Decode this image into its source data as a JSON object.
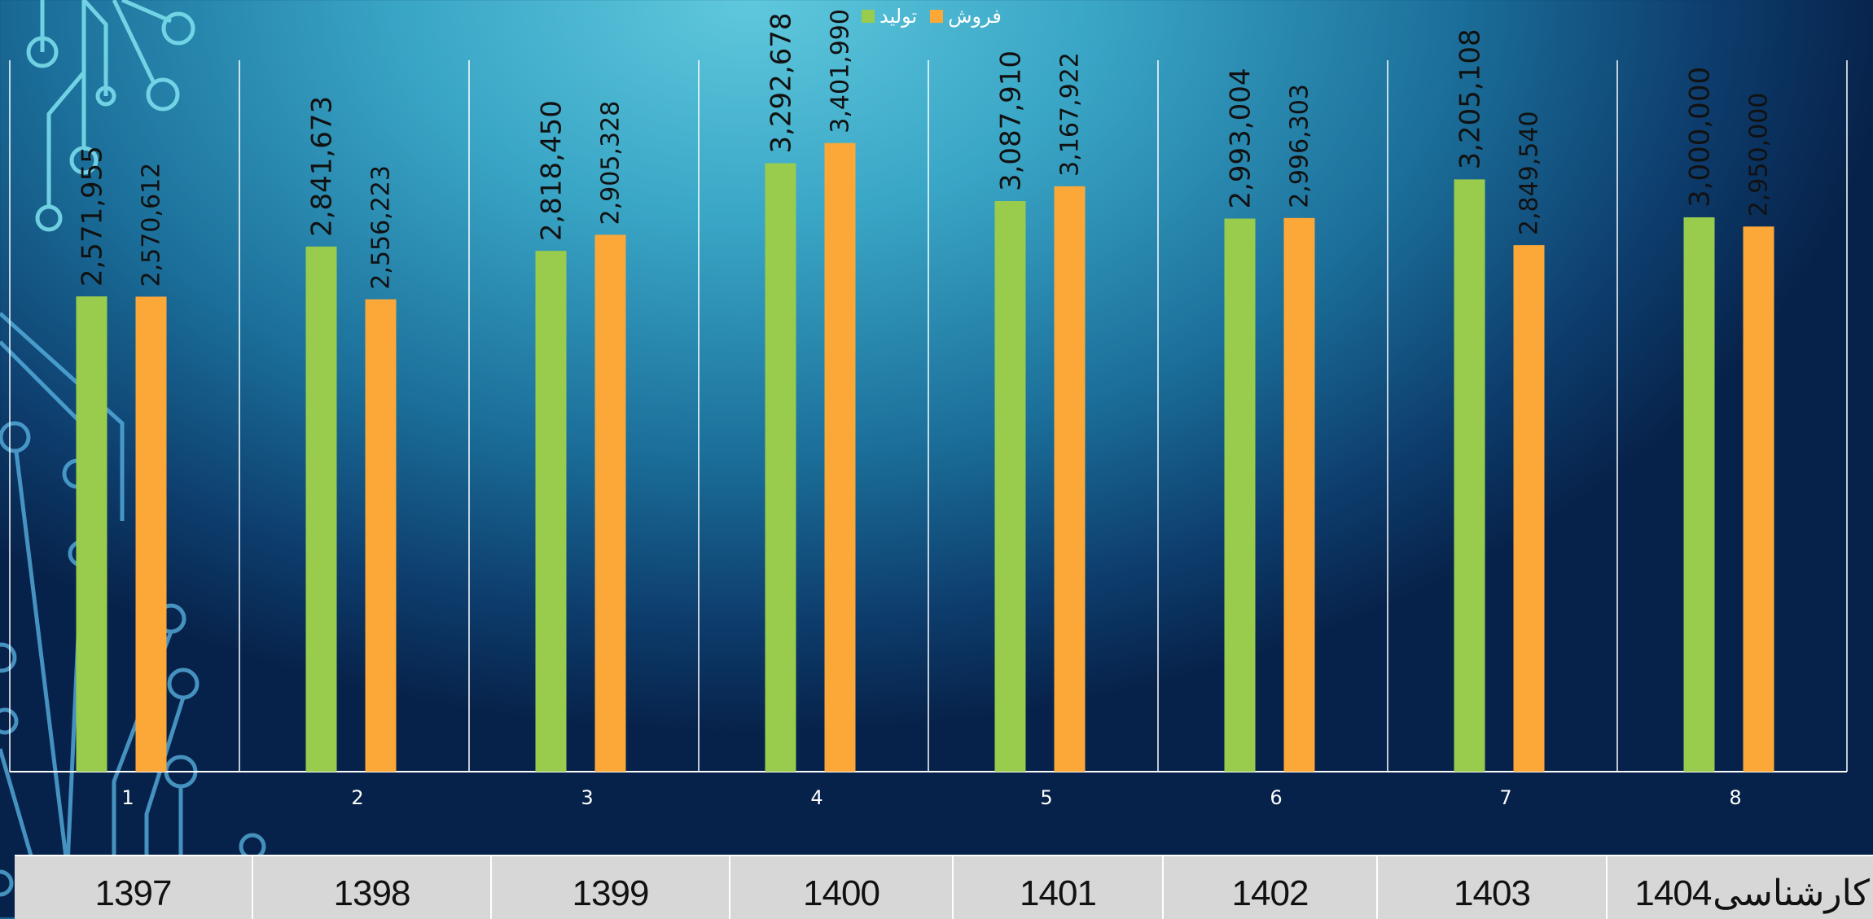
{
  "colors": {
    "production": "#99cc4d",
    "sales": "#fca838",
    "gridline": "#ffffff",
    "label": "#111111"
  },
  "legend": {
    "production": "تولید",
    "sales": "فروش"
  },
  "chart_data": {
    "type": "bar",
    "categories": [
      "1",
      "2",
      "3",
      "4",
      "5",
      "6",
      "7",
      "8"
    ],
    "series": [
      {
        "name": "تولید",
        "values": [
          2571955,
          2841673,
          2818450,
          3292678,
          3087910,
          2993004,
          3205108,
          3000000
        ]
      },
      {
        "name": "فروش",
        "values": [
          2570612,
          2556223,
          2905328,
          3401990,
          3167922,
          2996303,
          2849540,
          2950000
        ]
      }
    ],
    "data_labels": [
      [
        "2,571,955",
        "2,841,673",
        "2,818,450",
        "3,292,678",
        "3,087,910",
        "2,993,004",
        "3,205,108",
        "3,000,000"
      ],
      [
        "2,570,612",
        "2,556,223",
        "2,905,328",
        "3,401,990",
        "3,167,922",
        "2,996,303",
        "2,849,540",
        "2,950,000"
      ]
    ],
    "ylim": [
      0,
      3850000
    ],
    "grid": "vertical-category-separators",
    "legend_position": "top-center"
  },
  "year_table": {
    "years": [
      "1397",
      "1398",
      "1399",
      "1400",
      "1401",
      "1402",
      "1403",
      "1404"
    ],
    "last_suffix": "کارشناسی"
  }
}
